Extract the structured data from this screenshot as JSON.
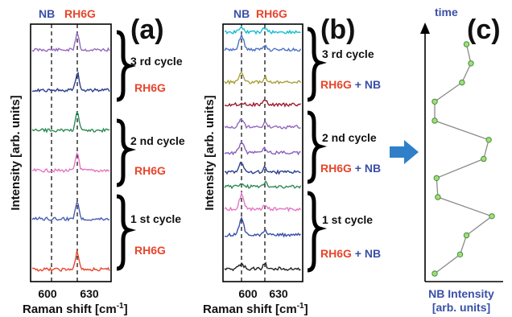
{
  "panels": [
    {
      "label": "(a)",
      "top_labels": {
        "nb": "NB",
        "rh6g": "RH6G"
      },
      "xlabel": "Raman shift [cm",
      "xlabel_sup": "-1",
      "xlabel_close": "]",
      "ylabel": "Intensity [arb. units]",
      "ticks": [
        "600",
        "630"
      ],
      "cycles": [
        {
          "name": "3 rd cycle",
          "sample": "RH6G"
        },
        {
          "name": "2 nd cycle",
          "sample": "RH6G"
        },
        {
          "name": "1 st cycle",
          "sample": "RH6G"
        }
      ]
    },
    {
      "label": "(b)",
      "top_labels": {
        "nb": "NB",
        "rh6g": "RH6G"
      },
      "xlabel": "Raman shift [cm",
      "xlabel_sup": "-1",
      "xlabel_close": "]",
      "ylabel": "Intensity [arb. units]",
      "ticks": [
        "600",
        "630"
      ],
      "cycles": [
        {
          "name": "3 rd cycle",
          "sample_a": "RH6G",
          "plus": " + ",
          "sample_b": "NB"
        },
        {
          "name": "2 nd cycle",
          "sample_a": "RH6G",
          "plus": " + ",
          "sample_b": "NB"
        },
        {
          "name": "1 st cycle",
          "sample_a": "RH6G",
          "plus": " + ",
          "sample_b": "NB"
        }
      ]
    },
    {
      "label": "(c)",
      "ylabel": "time",
      "xlabel_line1": "NB Intensity",
      "xlabel_line2": "[arb. units]"
    }
  ],
  "colors": {
    "nb_blue": "#3a4fa8",
    "rh6g_red": "#e8452c",
    "arrow": "#2f80c9",
    "point_fill": "#9ee07a",
    "trace_a": [
      "#9467bd",
      "#2c3e91",
      "#2e8b57",
      "#e377c2",
      "#4a5db0",
      "#e8452c"
    ],
    "trace_b": [
      "#17becf",
      "#4a6fc9",
      "#a8a13a",
      "#9b1c2c",
      "#9467bd",
      "#8b5fbf",
      "#2c3e91",
      "#2e8b57",
      "#e377c2",
      "#3a4fa8",
      "#222222"
    ]
  },
  "chart_data": {
    "type": "line",
    "xlabel": "NB Intensity [arb. units]",
    "ylabel": "time",
    "points": [
      {
        "time": 12,
        "nb_intensity": 0.55
      },
      {
        "time": 11,
        "nb_intensity": 0.62
      },
      {
        "time": 10,
        "nb_intensity": 0.48
      },
      {
        "time": 9,
        "nb_intensity": 0.05
      },
      {
        "time": 8,
        "nb_intensity": 0.05
      },
      {
        "time": 7,
        "nb_intensity": 0.9
      },
      {
        "time": 6,
        "nb_intensity": 0.82
      },
      {
        "time": 5,
        "nb_intensity": 0.08
      },
      {
        "time": 4,
        "nb_intensity": 0.1
      },
      {
        "time": 3,
        "nb_intensity": 0.95
      },
      {
        "time": 2,
        "nb_intensity": 0.55
      },
      {
        "time": 1,
        "nb_intensity": 0.45
      },
      {
        "time": 0,
        "nb_intensity": 0.05
      }
    ]
  }
}
